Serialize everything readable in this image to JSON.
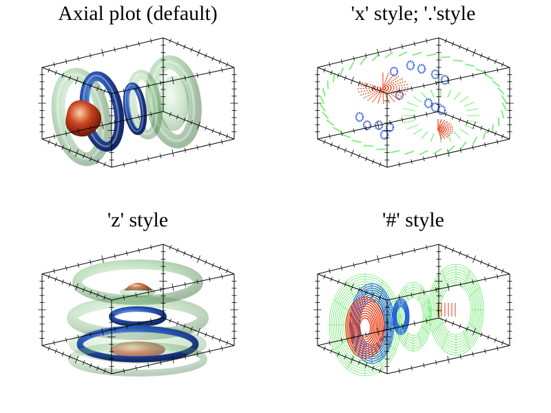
{
  "chart_data": [
    {
      "type": "other",
      "title": "Axial plot (default)",
      "style": "default",
      "rendering": "surface",
      "colors": {
        "outer": "#6fb86f",
        "middle": "#2f5fbf",
        "inner": "#c8431e"
      }
    },
    {
      "type": "other",
      "title": "'x' style; '.'style",
      "style": "x",
      "rendering": "points",
      "colors": {
        "outer": "#7ef07e",
        "middle": "#1f4fd0",
        "inner": "#e83a10"
      }
    },
    {
      "type": "other",
      "title": "'z' style",
      "style": "z",
      "rendering": "surface",
      "colors": {
        "outer": "#6fb86f",
        "middle": "#2f5fbf",
        "inner": "#c8431e"
      }
    },
    {
      "type": "other",
      "title": "'#' style",
      "style": "#",
      "rendering": "mesh",
      "colors": {
        "outer": "#6ee86e",
        "middle": "#1f5fd8",
        "inner": "#e83a10"
      }
    }
  ]
}
